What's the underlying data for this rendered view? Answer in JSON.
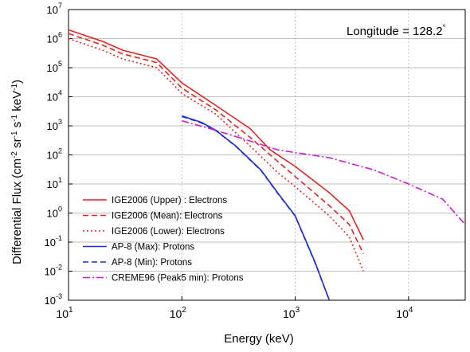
{
  "chart_data": {
    "type": "line",
    "title": "",
    "annotation": {
      "prefix": "Longitude = ",
      "value": "128.2",
      "suffix": "°"
    },
    "xlabel": "Energy (keV)",
    "ylabel": {
      "base": "Differential Flux (cm",
      "e1": "-2",
      "mid1": " sr",
      "e2": "-1",
      "mid2": " s",
      "e3": "-1",
      "mid3": " keV",
      "e4": "-1",
      "end": ")"
    },
    "xscale": "log",
    "yscale": "log",
    "xlim": [
      10,
      31623
    ],
    "ylim": [
      0.001,
      10000000
    ],
    "x_ticks": [
      {
        "base": "10",
        "exp": "1"
      },
      {
        "base": "10",
        "exp": "2"
      },
      {
        "base": "10",
        "exp": "3"
      },
      {
        "base": "10",
        "exp": "4"
      }
    ],
    "y_ticks": [
      {
        "base": "10",
        "exp": "-3"
      },
      {
        "base": "10",
        "exp": "-2"
      },
      {
        "base": "10",
        "exp": "-1"
      },
      {
        "base": "10",
        "exp": "0"
      },
      {
        "base": "10",
        "exp": "1"
      },
      {
        "base": "10",
        "exp": "2"
      },
      {
        "base": "10",
        "exp": "3"
      },
      {
        "base": "10",
        "exp": "4"
      },
      {
        "base": "10",
        "exp": "5"
      },
      {
        "base": "10",
        "exp": "6"
      },
      {
        "base": "10",
        "exp": "7"
      }
    ],
    "grid": {
      "horizontal": "solid gray",
      "vertical": "dotted gray"
    },
    "legend_position": "bottom-left",
    "series": [
      {
        "name": "IGE2006 (Upper) : Electrons",
        "color": "#e52420",
        "dash": "solid",
        "points": [
          [
            10,
            2000000
          ],
          [
            20,
            800000
          ],
          [
            30,
            400000
          ],
          [
            60,
            200000
          ],
          [
            100,
            30000
          ],
          [
            200,
            5000
          ],
          [
            400,
            800
          ],
          [
            600,
            150
          ],
          [
            1000,
            40
          ],
          [
            2000,
            5
          ],
          [
            3000,
            1.2
          ],
          [
            4000,
            0.12
          ]
        ]
      },
      {
        "name": "IGE2006 (Mean): Electrons",
        "color": "#e52420",
        "dash": "dashed",
        "points": [
          [
            10,
            1500000
          ],
          [
            20,
            600000
          ],
          [
            30,
            300000
          ],
          [
            60,
            150000
          ],
          [
            100,
            20000
          ],
          [
            200,
            3500
          ],
          [
            400,
            400
          ],
          [
            700,
            60
          ],
          [
            1000,
            18
          ],
          [
            2000,
            1.8
          ],
          [
            3000,
            0.4
          ],
          [
            4000,
            0.04
          ]
        ]
      },
      {
        "name": "IGE2006 (Lower): Electrons",
        "color": "#e52420",
        "dash": "dotted",
        "points": [
          [
            10,
            1000000
          ],
          [
            20,
            400000
          ],
          [
            30,
            200000
          ],
          [
            60,
            100000
          ],
          [
            100,
            13000
          ],
          [
            200,
            2500
          ],
          [
            400,
            200
          ],
          [
            700,
            25
          ],
          [
            1000,
            8
          ],
          [
            2000,
            0.8
          ],
          [
            3000,
            0.15
          ],
          [
            4000,
            0.01
          ]
        ]
      },
      {
        "name": "AP-8 (Max): Protons",
        "color": "#1c2fd6",
        "dash": "solid",
        "points": [
          [
            100,
            2200
          ],
          [
            150,
            1300
          ],
          [
            200,
            700
          ],
          [
            300,
            200
          ],
          [
            500,
            30
          ],
          [
            700,
            5
          ],
          [
            1000,
            0.8
          ],
          [
            1500,
            0.02
          ],
          [
            2000,
            0.001
          ]
        ]
      },
      {
        "name": "AP-8 (Min): Protons",
        "color": "#1c2fd6",
        "dash": "dashed",
        "points": [
          [
            100,
            2100
          ],
          [
            150,
            1250
          ],
          [
            200,
            680
          ],
          [
            300,
            195
          ],
          [
            500,
            29
          ],
          [
            700,
            4.8
          ],
          [
            1000,
            0.78
          ],
          [
            1500,
            0.019
          ],
          [
            2000,
            0.001
          ]
        ]
      },
      {
        "name": "CREME96 (Peak5 min): Protons",
        "color": "#d21ad2",
        "dash": "dashdot",
        "points": [
          [
            100,
            1500
          ],
          [
            200,
            700
          ],
          [
            400,
            300
          ],
          [
            700,
            150
          ],
          [
            1000,
            120
          ],
          [
            2000,
            80
          ],
          [
            5000,
            30
          ],
          [
            10000,
            10
          ],
          [
            20000,
            3
          ],
          [
            31623,
            0.4
          ]
        ]
      }
    ]
  }
}
